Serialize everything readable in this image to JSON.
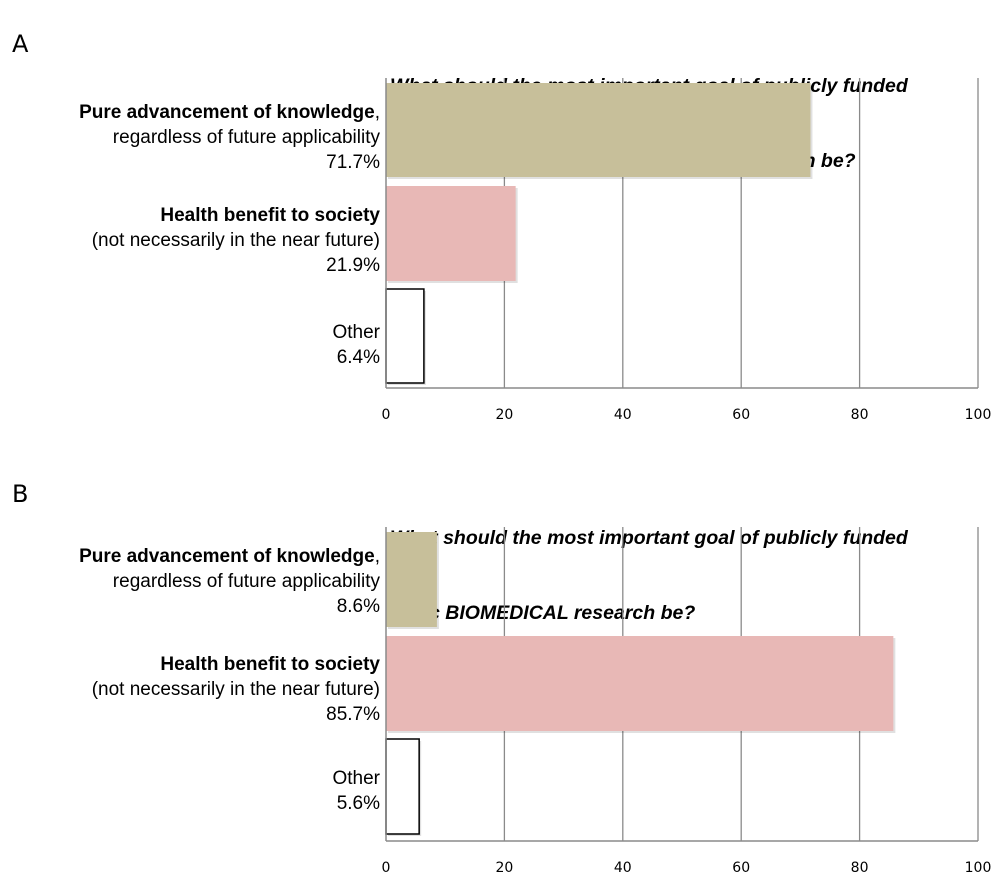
{
  "chart_data": [
    {
      "panel": "A",
      "type": "bar",
      "orientation": "horizontal",
      "title_lines": [
        "What should the most important goal of publicly funded",
        " basic BIOLOGICAL (not biomedical) research be?"
      ],
      "categories": [
        {
          "name_bold": "Pure advancement of knowledge",
          "name_suffix": ",",
          "detail": "regardless of future applicability",
          "pct_label": "71.7%"
        },
        {
          "name_bold": "Health benefit to society",
          "name_suffix": "",
          "detail": "(not necessarily in the near future)",
          "pct_label": "21.9%"
        },
        {
          "name_bold": "",
          "name_suffix": "Other",
          "detail": "",
          "pct_label": "6.4%"
        }
      ],
      "values": [
        71.7,
        21.9,
        6.4
      ],
      "colors": [
        "#c7bf9a",
        "#e8b8b6",
        "#ffffff"
      ],
      "xlim": [
        0,
        100
      ],
      "xticks": [
        0,
        20,
        40,
        60,
        80,
        100
      ],
      "grid": true
    },
    {
      "panel": "B",
      "type": "bar",
      "orientation": "horizontal",
      "title_lines": [
        "What should the most important goal of publicly funded",
        "basic BIOMEDICAL research be?"
      ],
      "categories": [
        {
          "name_bold": "Pure advancement of knowledge",
          "name_suffix": ",",
          "detail": "regardless of future applicability",
          "pct_label": "8.6%"
        },
        {
          "name_bold": "Health benefit to society",
          "name_suffix": "",
          "detail": "(not necessarily in the near future)",
          "pct_label": "85.7%"
        },
        {
          "name_bold": "",
          "name_suffix": "Other",
          "detail": "",
          "pct_label": "5.6%"
        }
      ],
      "values": [
        8.6,
        85.7,
        5.6
      ],
      "colors": [
        "#c7bf9a",
        "#e8b8b6",
        "#ffffff"
      ],
      "xlim": [
        0,
        100
      ],
      "xticks": [
        0,
        20,
        40,
        60,
        80,
        100
      ],
      "grid": true
    }
  ]
}
